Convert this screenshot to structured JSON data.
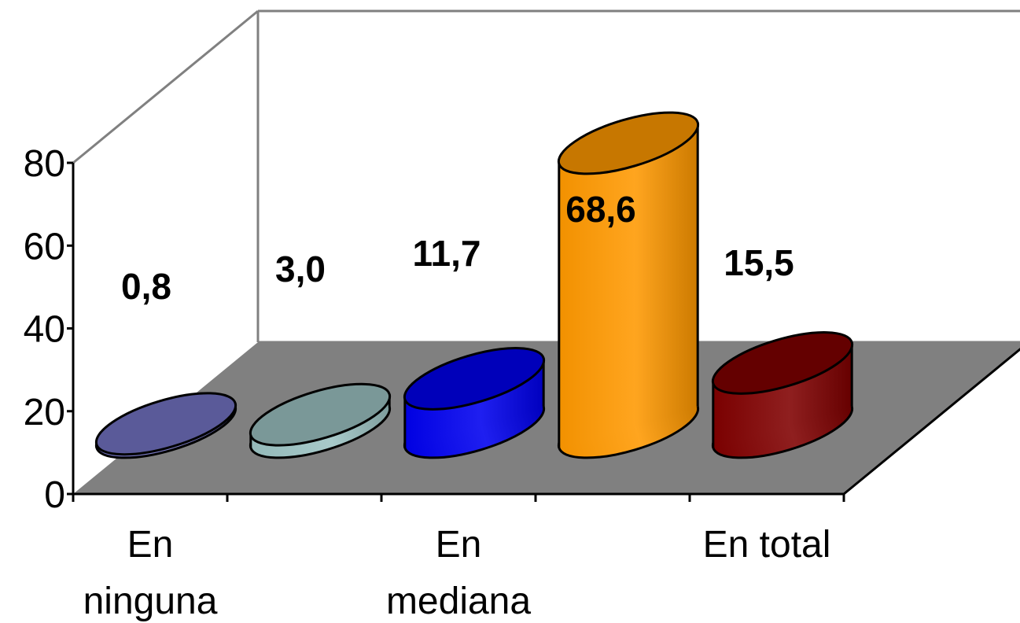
{
  "chart_data": {
    "type": "bar",
    "three_d": true,
    "bar_shape": "cylinder",
    "categories": [
      "En ninguna",
      "",
      "En mediana",
      "",
      "En total"
    ],
    "category_label_lines": [
      [
        "En",
        "ninguna"
      ],
      [],
      [
        "En",
        "mediana"
      ],
      [],
      [
        "En total"
      ]
    ],
    "values": [
      0.8,
      3.0,
      11.7,
      68.6,
      15.5
    ],
    "data_labels": [
      "0,8",
      "3,0",
      "11,7",
      "68,6",
      "15,5"
    ],
    "colors": [
      "#7373c4",
      "#9cc3c3",
      "#0000ee",
      "#ff9900",
      "#800000"
    ],
    "floor_color": "#808080",
    "ylim": [
      0,
      80
    ],
    "yticks": [
      0,
      20,
      40,
      60,
      80
    ],
    "ytick_labels": [
      "0",
      "20",
      "40",
      "60",
      "80"
    ],
    "title": "",
    "xlabel": "",
    "ylabel": "",
    "grid": false,
    "legend": "none"
  }
}
